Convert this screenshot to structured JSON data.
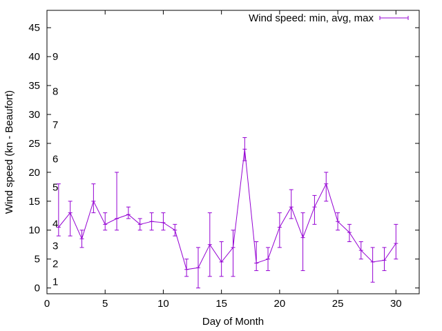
{
  "chart_data": {
    "type": "line",
    "xlabel": "Day of Month",
    "ylabel": "Wind speed (kn - Beaufort)",
    "xlim": [
      0,
      32
    ],
    "ylim": [
      -1,
      48
    ],
    "xticks": [
      0,
      5,
      10,
      15,
      20,
      25,
      30
    ],
    "yticks": [
      0,
      5,
      10,
      15,
      20,
      25,
      30,
      35,
      40,
      45
    ],
    "grid": false,
    "legend_position": "top-right",
    "series": [
      {
        "name": "Wind speed: min, avg, max",
        "color": "#9400d3",
        "points": [
          {
            "x": 1,
            "avg": 10.5,
            "min": 9,
            "max": 18
          },
          {
            "x": 2,
            "avg": 13,
            "min": 9,
            "max": 15
          },
          {
            "x": 3,
            "avg": 8.5,
            "min": 7,
            "max": 10
          },
          {
            "x": 4,
            "avg": 15,
            "min": 13,
            "max": 18
          },
          {
            "x": 5,
            "avg": 11,
            "min": 10,
            "max": 13
          },
          {
            "x": 6,
            "avg": 12,
            "min": 10,
            "max": 20
          },
          {
            "x": 7,
            "avg": 12.7,
            "min": 12,
            "max": 14
          },
          {
            "x": 8,
            "avg": 11,
            "min": 10,
            "max": 12
          },
          {
            "x": 9,
            "avg": 11.5,
            "min": 10,
            "max": 13
          },
          {
            "x": 10,
            "avg": 11.3,
            "min": 10,
            "max": 13
          },
          {
            "x": 11,
            "avg": 10,
            "min": 9,
            "max": 11
          },
          {
            "x": 12,
            "avg": 3.2,
            "min": 2,
            "max": 5
          },
          {
            "x": 13,
            "avg": 3.5,
            "min": 0,
            "max": 7
          },
          {
            "x": 14,
            "avg": 7.5,
            "min": 2,
            "max": 13
          },
          {
            "x": 15,
            "avg": 4.5,
            "min": 2,
            "max": 8
          },
          {
            "x": 16,
            "avg": 7,
            "min": 2,
            "max": 10
          },
          {
            "x": 17,
            "avg": 24,
            "min": 22,
            "max": 26
          },
          {
            "x": 18,
            "avg": 4.3,
            "min": 3,
            "max": 8
          },
          {
            "x": 19,
            "avg": 5,
            "min": 3,
            "max": 7
          },
          {
            "x": 20,
            "avg": 10.5,
            "min": 7,
            "max": 13
          },
          {
            "x": 21,
            "avg": 14,
            "min": 12,
            "max": 17
          },
          {
            "x": 22,
            "avg": 8.7,
            "min": 3,
            "max": 13
          },
          {
            "x": 23,
            "avg": 14,
            "min": 11,
            "max": 16
          },
          {
            "x": 24,
            "avg": 18,
            "min": 15,
            "max": 20
          },
          {
            "x": 25,
            "avg": 11.5,
            "min": 10,
            "max": 13
          },
          {
            "x": 26,
            "avg": 9.6,
            "min": 8,
            "max": 11
          },
          {
            "x": 27,
            "avg": 6.5,
            "min": 5,
            "max": 8
          },
          {
            "x": 28,
            "avg": 4.5,
            "min": 1,
            "max": 7
          },
          {
            "x": 29,
            "avg": 4.8,
            "min": 3,
            "max": 7
          },
          {
            "x": 30,
            "avg": 7.7,
            "min": 5,
            "max": 11
          }
        ]
      }
    ],
    "beaufort_labels": [
      {
        "text": "1",
        "y": 1.1
      },
      {
        "text": "2",
        "y": 4.2
      },
      {
        "text": "3",
        "y": 7.3
      },
      {
        "text": "4",
        "y": 11.1
      },
      {
        "text": "5",
        "y": 17.4
      },
      {
        "text": "6",
        "y": 22.3
      },
      {
        "text": "7",
        "y": 28.2
      },
      {
        "text": "8",
        "y": 34.0
      },
      {
        "text": "9",
        "y": 40.0
      }
    ]
  }
}
